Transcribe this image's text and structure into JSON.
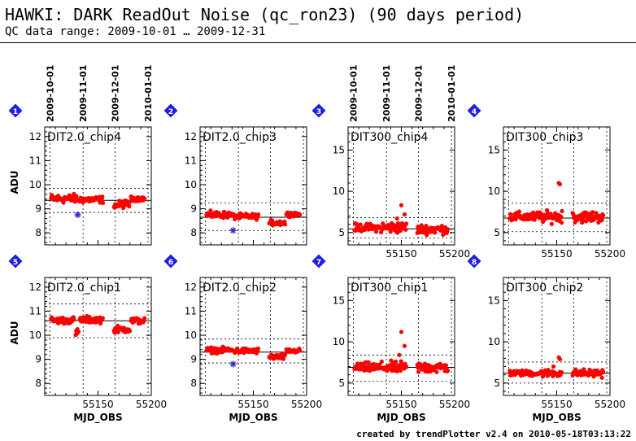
{
  "header": {
    "title": "HAWKI: DARK ReadOut Noise (qc_ron23) (90 days period)",
    "subtitle": "QC data range: 2009-10-01 … 2009-12-31"
  },
  "footer": {
    "text": "created by trendPlotter v2.4 on 2010-05-18T03:13:22"
  },
  "colors": {
    "points": "#ff0000",
    "outlier": "#3b2ccf",
    "badge": "#1f1fe0",
    "line": "#000000"
  },
  "date_ticks": [
    "2009-10-01",
    "2009-11-01",
    "2009-12-01",
    "2010-01-01"
  ],
  "chart_data": [
    {
      "type": "scatter",
      "badge": "1",
      "label": "DIT2.0_chip4",
      "ylabel": "ADU",
      "xlabel": "",
      "xlim": [
        55100,
        55200
      ],
      "ylim": [
        7.5,
        12.4
      ],
      "yticks": [
        8,
        9,
        10,
        11,
        12
      ],
      "xticks": [],
      "date_axis": true,
      "mean": 9.35,
      "bands": [
        8.85,
        9.85
      ],
      "segments": [
        [
          55106,
          55130,
          9.42,
          0.16
        ],
        [
          55131,
          55155,
          9.38,
          0.12
        ],
        [
          55165,
          55170,
          9.15,
          0.15
        ],
        [
          55171,
          55180,
          9.2,
          0.15
        ],
        [
          55181,
          55194,
          9.42,
          0.08
        ]
      ],
      "outliers": [
        [
          55131,
          8.75
        ]
      ]
    },
    {
      "type": "scatter",
      "badge": "2",
      "label": "DIT2.0_chip3",
      "ylabel": "",
      "xlabel": "",
      "xlim": [
        55100,
        55200
      ],
      "ylim": [
        7.5,
        12.4
      ],
      "yticks": [
        8,
        9,
        10,
        11,
        12
      ],
      "xticks": [],
      "date_axis": false,
      "mean": 8.65,
      "bands": [
        8.1,
        9.25
      ],
      "segments": [
        [
          55106,
          55130,
          8.75,
          0.12
        ],
        [
          55131,
          55155,
          8.68,
          0.1
        ],
        [
          55165,
          55180,
          8.42,
          0.1
        ],
        [
          55181,
          55194,
          8.78,
          0.08
        ]
      ],
      "outliers": [
        [
          55131,
          8.1
        ]
      ]
    },
    {
      "type": "scatter",
      "badge": "3",
      "label": "DIT300_chip4",
      "ylabel": "",
      "xlabel": "",
      "xlim": [
        55100,
        55200
      ],
      "ylim": [
        3.5,
        17.8
      ],
      "yticks": [
        5,
        10,
        15
      ],
      "xticks": [
        55150,
        55200
      ],
      "date_axis": true,
      "mean": 5.45,
      "bands": [
        4.35,
        6.8
      ],
      "segments": [
        [
          55106,
          55130,
          5.6,
          0.4
        ],
        [
          55131,
          55155,
          5.6,
          0.6
        ],
        [
          55165,
          55194,
          5.4,
          0.5
        ]
      ],
      "extra_points": [
        [
          55150,
          8.3
        ],
        [
          55153,
          7.2
        ],
        [
          55146,
          6.7
        ]
      ],
      "outliers": []
    },
    {
      "type": "scatter",
      "badge": "4",
      "label": "DIT300_chip3",
      "ylabel": "",
      "xlabel": "",
      "xlim": [
        55100,
        55200
      ],
      "ylim": [
        3.5,
        17.8
      ],
      "yticks": [
        5,
        10,
        15
      ],
      "xticks": [
        55150,
        55200
      ],
      "date_axis": false,
      "mean": 6.75,
      "bands": [
        5.1,
        8.55
      ],
      "segments": [
        [
          55106,
          55130,
          6.9,
          0.5
        ],
        [
          55131,
          55155,
          6.9,
          0.6
        ],
        [
          55165,
          55194,
          6.9,
          0.6
        ]
      ],
      "extra_points": [
        [
          55152,
          11.0
        ],
        [
          55153,
          10.85
        ],
        [
          55155,
          7.6
        ]
      ],
      "outliers": []
    },
    {
      "type": "scatter",
      "badge": "5",
      "label": "DIT2.0_chip1",
      "ylabel": "ADU",
      "xlabel": "MJD_OBS",
      "xlim": [
        55100,
        55200
      ],
      "ylim": [
        7.5,
        12.4
      ],
      "yticks": [
        8,
        9,
        10,
        11,
        12
      ],
      "xticks": [
        55150,
        55200
      ],
      "date_axis": false,
      "mean": 10.6,
      "bands": [
        9.9,
        11.3
      ],
      "segments": [
        [
          55106,
          55128,
          10.62,
          0.12
        ],
        [
          55129,
          55132,
          10.1,
          0.15
        ],
        [
          55133,
          55155,
          10.65,
          0.12
        ],
        [
          55165,
          55180,
          10.25,
          0.12
        ],
        [
          55181,
          55194,
          10.6,
          0.12
        ]
      ],
      "outliers": []
    },
    {
      "type": "scatter",
      "badge": "6",
      "label": "DIT2.0_chip2",
      "ylabel": "",
      "xlabel": "MJD_OBS",
      "xlim": [
        55100,
        55200
      ],
      "ylim": [
        7.5,
        12.4
      ],
      "yticks": [
        8,
        9,
        10,
        11,
        12
      ],
      "xticks": [
        55150,
        55200
      ],
      "date_axis": false,
      "mean": 9.3,
      "bands": [
        8.85,
        9.85
      ],
      "segments": [
        [
          55106,
          55130,
          9.38,
          0.1
        ],
        [
          55131,
          55155,
          9.35,
          0.1
        ],
        [
          55165,
          55180,
          9.1,
          0.1
        ],
        [
          55181,
          55194,
          9.35,
          0.08
        ]
      ],
      "outliers": [
        [
          55131,
          8.8
        ]
      ]
    },
    {
      "type": "scatter",
      "badge": "7",
      "label": "DIT300_chip1",
      "ylabel": "",
      "xlabel": "MJD_OBS",
      "xlim": [
        55100,
        55200
      ],
      "ylim": [
        3.5,
        17.8
      ],
      "yticks": [
        5,
        10,
        15
      ],
      "xticks": [
        55150,
        55200
      ],
      "date_axis": false,
      "mean": 6.9,
      "bands": [
        5.2,
        8.4
      ],
      "segments": [
        [
          55106,
          55130,
          6.9,
          0.5
        ],
        [
          55131,
          55155,
          6.9,
          0.6
        ],
        [
          55165,
          55194,
          6.9,
          0.6
        ]
      ],
      "extra_points": [
        [
          55150,
          11.2
        ],
        [
          55153,
          9.5
        ],
        [
          55148,
          8.4
        ]
      ],
      "outliers": []
    },
    {
      "type": "scatter",
      "badge": "8",
      "label": "DIT300_chip2",
      "ylabel": "",
      "xlabel": "MJD_OBS",
      "xlim": [
        55100,
        55200
      ],
      "ylim": [
        3.5,
        17.8
      ],
      "yticks": [
        5,
        10,
        15
      ],
      "xticks": [
        55150,
        55200
      ],
      "date_axis": false,
      "mean": 6.2,
      "bands": [
        5.0,
        7.55
      ],
      "segments": [
        [
          55106,
          55130,
          6.2,
          0.3
        ],
        [
          55131,
          55155,
          6.2,
          0.4
        ],
        [
          55165,
          55194,
          6.2,
          0.4
        ]
      ],
      "extra_points": [
        [
          55152,
          8.1
        ],
        [
          55153,
          7.9
        ],
        [
          55147,
          7.0
        ]
      ],
      "outliers": []
    }
  ]
}
